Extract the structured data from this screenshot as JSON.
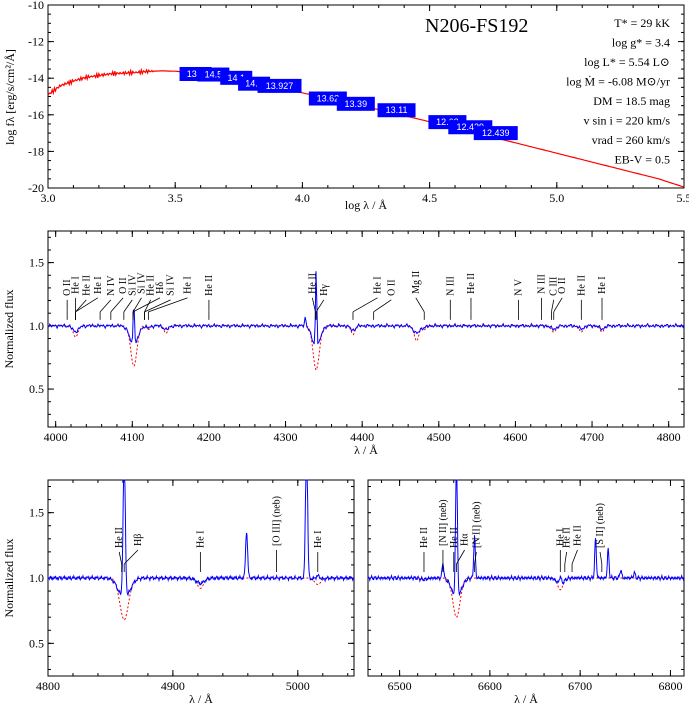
{
  "colors": {
    "model": "#ff0000",
    "observed": "#0000ff",
    "photometry_box": "#0000ff",
    "photometry_text": "#ffffff"
  },
  "sed_panel": {
    "title": "N206-FS192",
    "parameters": [
      "T* = 29 kK",
      "log g* = 3.4",
      "log L* = 5.54 L⊙",
      "log Ṁ = -6.08 M⊙/yr",
      "DM = 18.5 mag",
      "v sin i = 220 km/s",
      "vrad = 260 km/s",
      "EB-V = 0.5"
    ]
  },
  "chart_data": [
    {
      "type": "line",
      "panel": "sed",
      "xlabel": "log λ / Å",
      "ylabel": "log fλ [erg/s/cm²/Å]",
      "xlim": [
        3.0,
        5.5
      ],
      "ylim": [
        -20,
        -10
      ],
      "xticks": [
        "3.0",
        "3.5",
        "4.0",
        "4.5",
        "5.0",
        "5.5"
      ],
      "yticks": [
        "-20",
        "-18",
        "-16",
        "-14",
        "-12",
        "-10"
      ],
      "model_sed": {
        "x": [
          3.0,
          3.05,
          3.1,
          3.15,
          3.2,
          3.25,
          3.3,
          3.35,
          3.4,
          3.45,
          3.5,
          3.6,
          3.7,
          3.8,
          3.9,
          4.0,
          4.1,
          4.2,
          4.3,
          4.4,
          4.5,
          4.6,
          4.7,
          4.8,
          4.9,
          5.0,
          5.1,
          5.2,
          5.3,
          5.4,
          5.5
        ],
        "y": [
          -14.9,
          -14.4,
          -14.15,
          -13.95,
          -13.85,
          -13.75,
          -13.72,
          -13.68,
          -13.62,
          -13.6,
          -13.62,
          -13.75,
          -13.95,
          -14.2,
          -14.5,
          -14.8,
          -15.1,
          -15.4,
          -15.72,
          -16.05,
          -16.38,
          -16.7,
          -17.05,
          -17.4,
          -17.75,
          -18.1,
          -18.45,
          -18.8,
          -19.15,
          -19.5,
          -19.95
        ]
      },
      "photometry": [
        {
          "label": "13.1",
          "x": 3.58,
          "y": -13.77
        },
        {
          "label": "14.5",
          "x": 3.65,
          "y": -13.8
        },
        {
          "label": "14.1",
          "x": 3.74,
          "y": -13.98
        },
        {
          "label": "14.4",
          "x": 3.81,
          "y": -14.3
        },
        {
          "label": "13.927",
          "x": 3.91,
          "y": -14.42
        },
        {
          "label": "13.62",
          "x": 4.1,
          "y": -15.11
        },
        {
          "label": "13.39",
          "x": 4.21,
          "y": -15.4
        },
        {
          "label": "13.11",
          "x": 4.37,
          "y": -15.75
        },
        {
          "label": "12.62",
          "x": 4.57,
          "y": -16.4
        },
        {
          "label": "12.439",
          "x": 4.66,
          "y": -16.68
        },
        {
          "label": "12.439",
          "x": 4.76,
          "y": -17.0
        }
      ]
    },
    {
      "type": "line",
      "panel": "blue",
      "xlabel": "λ / Å",
      "ylabel": "Normalized flux",
      "xlim": [
        3990,
        4820
      ],
      "ylim": [
        0.2,
        1.75
      ],
      "xticks": [
        "4000",
        "4100",
        "4200",
        "4300",
        "4400",
        "4500",
        "4600",
        "4700",
        "4800"
      ],
      "yticks": [
        "0.5",
        "1.0",
        "1.5"
      ],
      "absorption_lines": [
        {
          "wave": 4026,
          "depth": 0.09,
          "width": 3
        },
        {
          "wave": 4102,
          "depth": 0.32,
          "width": 4
        },
        {
          "wave": 4121,
          "depth": 0.03,
          "width": 2
        },
        {
          "wave": 4144,
          "depth": 0.06,
          "width": 2.5
        },
        {
          "wave": 4340,
          "depth": 0.35,
          "width": 4
        },
        {
          "wave": 4388,
          "depth": 0.07,
          "width": 2.5
        },
        {
          "wave": 4471,
          "depth": 0.12,
          "width": 3
        },
        {
          "wave": 4481,
          "depth": 0.03,
          "width": 2
        },
        {
          "wave": 4650,
          "depth": 0.05,
          "width": 3
        },
        {
          "wave": 4686,
          "depth": 0.05,
          "width": 2.5
        },
        {
          "wave": 4713,
          "depth": 0.05,
          "width": 2.5
        }
      ],
      "emission_lines": [
        {
          "wave": 4102,
          "height": 0.36,
          "width": 0.9
        },
        {
          "wave": 4340,
          "height": 0.62,
          "width": 0.9
        },
        {
          "wave": 4326,
          "height": 0.07,
          "width": 1
        }
      ],
      "line_ids": [
        {
          "label": "O II",
          "wave": 4015,
          "tick": 4015
        },
        {
          "label": "He I",
          "wave": 4026,
          "tick": 4026
        },
        {
          "label": "He II",
          "wave": 4040,
          "tick": 4026
        },
        {
          "label": "He I",
          "wave": 4055,
          "tick": 4026
        },
        {
          "label": "N IV",
          "wave": 4072,
          "tick": 4058
        },
        {
          "label": "O II",
          "wave": 4088,
          "tick": 4072
        },
        {
          "label": "Si IV",
          "wave": 4100,
          "tick": 4089
        },
        {
          "label": "Si IV",
          "wave": 4112,
          "tick": 4101
        },
        {
          "label": "He II",
          "wave": 4124,
          "tick": 4116
        },
        {
          "label": "Hδ",
          "wave": 4136,
          "tick": 4101
        },
        {
          "label": "Si IV",
          "wave": 4150,
          "tick": 4116
        },
        {
          "label": "He I",
          "wave": 4172,
          "tick": 4121
        },
        {
          "label": "He II",
          "wave": 4200,
          "tick": 4200
        },
        {
          "label": "He II",
          "wave": 4335,
          "tick": 4339
        },
        {
          "label": "Hγ",
          "wave": 4350,
          "tick": 4340
        },
        {
          "label": "He I",
          "wave": 4420,
          "tick": 4388
        },
        {
          "label": "O II",
          "wave": 4438,
          "tick": 4415
        },
        {
          "label": "Mg II",
          "wave": 4470,
          "tick": 4481
        },
        {
          "label": "N III",
          "wave": 4515,
          "tick": 4515
        },
        {
          "label": "He II",
          "wave": 4542,
          "tick": 4542
        },
        {
          "label": "N V",
          "wave": 4604,
          "tick": 4604
        },
        {
          "label": "N III",
          "wave": 4634,
          "tick": 4634
        },
        {
          "label": "C III",
          "wave": 4650,
          "tick": 4647
        },
        {
          "label": "O II",
          "wave": 4661,
          "tick": 4650
        },
        {
          "label": "He II",
          "wave": 4686,
          "tick": 4686
        },
        {
          "label": "He I",
          "wave": 4713,
          "tick": 4713
        }
      ]
    },
    {
      "type": "line",
      "panel": "hbeta",
      "xlabel": "λ / Å",
      "ylabel": "Normalized flux",
      "xlim": [
        4800,
        5045
      ],
      "ylim": [
        0.25,
        1.75
      ],
      "xticks": [
        "4800",
        "4900",
        "5000"
      ],
      "yticks": [
        "0.5",
        "1.0",
        "1.5"
      ],
      "absorption_lines": [
        {
          "wave": 4861,
          "depth": 0.32,
          "width": 3.5
        },
        {
          "wave": 4922,
          "depth": 0.08,
          "width": 2.5
        },
        {
          "wave": 5016,
          "depth": 0.05,
          "width": 2.5
        }
      ],
      "emission_lines": [
        {
          "wave": 4861,
          "height": 1.1,
          "width": 0.9
        },
        {
          "wave": 4959,
          "height": 0.36,
          "width": 0.8
        },
        {
          "wave": 5007,
          "height": 1.1,
          "width": 0.8
        },
        {
          "wave": 5016,
          "height": 0.04,
          "width": 2
        }
      ],
      "line_ids": [
        {
          "label": "He II",
          "wave": 4857,
          "tick": 4859
        },
        {
          "label": "Hβ",
          "wave": 4872,
          "tick": 4861
        },
        {
          "label": "He I",
          "wave": 4922,
          "tick": 4922
        },
        {
          "label": "[O III] (neb)",
          "wave": 4983,
          "tick": 4983
        },
        {
          "label": "He I",
          "wave": 5016,
          "tick": 5016
        }
      ]
    },
    {
      "type": "line",
      "panel": "halpha",
      "xlabel": "λ / Å",
      "ylabel": "",
      "xlim": [
        6465,
        6815
      ],
      "ylim": [
        0.25,
        1.75
      ],
      "xticks": [
        "6500",
        "6600",
        "6700",
        "6800"
      ],
      "yticks": [],
      "absorption_lines": [
        {
          "wave": 6563,
          "depth": 0.3,
          "width": 4
        },
        {
          "wave": 6678,
          "depth": 0.09,
          "width": 3
        },
        {
          "wave": 6527,
          "depth": 0.02,
          "width": 3
        }
      ],
      "emission_lines": [
        {
          "wave": 6548,
          "height": 0.12,
          "width": 0.9
        },
        {
          "wave": 6563,
          "height": 1.1,
          "width": 1
        },
        {
          "wave": 6583,
          "height": 0.32,
          "width": 0.9
        },
        {
          "wave": 6678,
          "height": 0.06,
          "width": 1
        },
        {
          "wave": 6717,
          "height": 0.3,
          "width": 0.9
        },
        {
          "wave": 6731,
          "height": 0.22,
          "width": 0.9
        },
        {
          "wave": 6745,
          "height": 0.06,
          "width": 1
        },
        {
          "wave": 6760,
          "height": 0.04,
          "width": 1
        }
      ],
      "line_ids": [
        {
          "label": "He II",
          "wave": 6527,
          "tick": 6527
        },
        {
          "label": "[N II] (neb)",
          "wave": 6548,
          "tick": 6548
        },
        {
          "label": "He II",
          "wave": 6560,
          "tick": 6560
        },
        {
          "label": "Hα",
          "wave": 6572,
          "tick": 6563
        },
        {
          "label": "[N II] (neb)",
          "wave": 6585,
          "tick": 6583
        },
        {
          "label": "He I",
          "wave": 6678,
          "tick": 6678
        },
        {
          "label": "He II",
          "wave": 6685,
          "tick": 6683
        },
        {
          "label": "He II",
          "wave": 6697,
          "tick": 6691
        },
        {
          "label": "[S II] (neb)",
          "wave": 6722,
          "tick": 6724
        }
      ]
    }
  ]
}
